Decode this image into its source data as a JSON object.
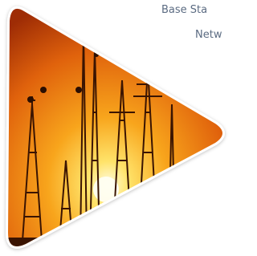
{
  "caption": {
    "line1": "Base Sta",
    "line2": "Netw"
  }
}
